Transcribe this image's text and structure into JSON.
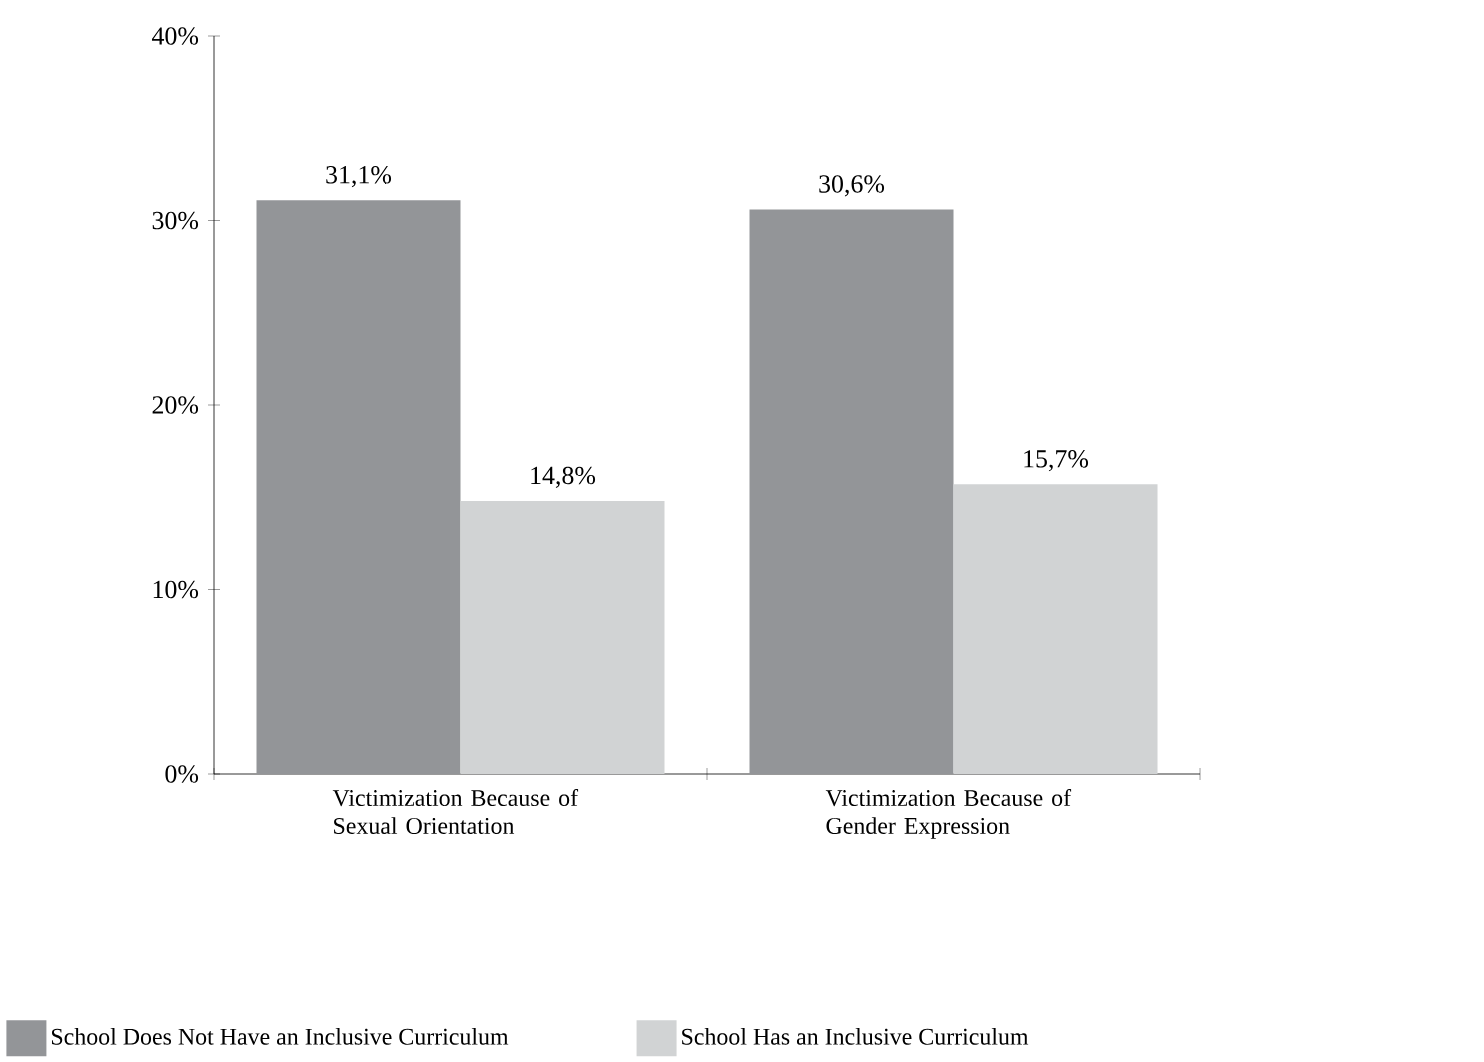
{
  "chart_data": {
    "type": "bar",
    "categories": [
      "Victimization Because of Sexual Orientation",
      "Victimization Because of Gender Expression"
    ],
    "series": [
      {
        "name": "School Does Not Have an Inclusive Curriculum",
        "color": "#939598",
        "values": [
          31.1,
          30.6
        ],
        "value_labels": [
          "31,1%",
          "30,6%"
        ]
      },
      {
        "name": "School Has an Inclusive Curriculum",
        "color": "#d1d3d4",
        "values": [
          14.8,
          15.7
        ],
        "value_labels": [
          "14,8%",
          "15,7%"
        ]
      }
    ],
    "ylim": [
      0,
      40
    ],
    "yticks": [
      {
        "value": 0,
        "label": "0%"
      },
      {
        "value": 10,
        "label": "10%"
      },
      {
        "value": 20,
        "label": "20%"
      },
      {
        "value": 30,
        "label": "30%"
      },
      {
        "value": 40,
        "label": "40%"
      }
    ],
    "grid": false,
    "legend": "bottom"
  }
}
